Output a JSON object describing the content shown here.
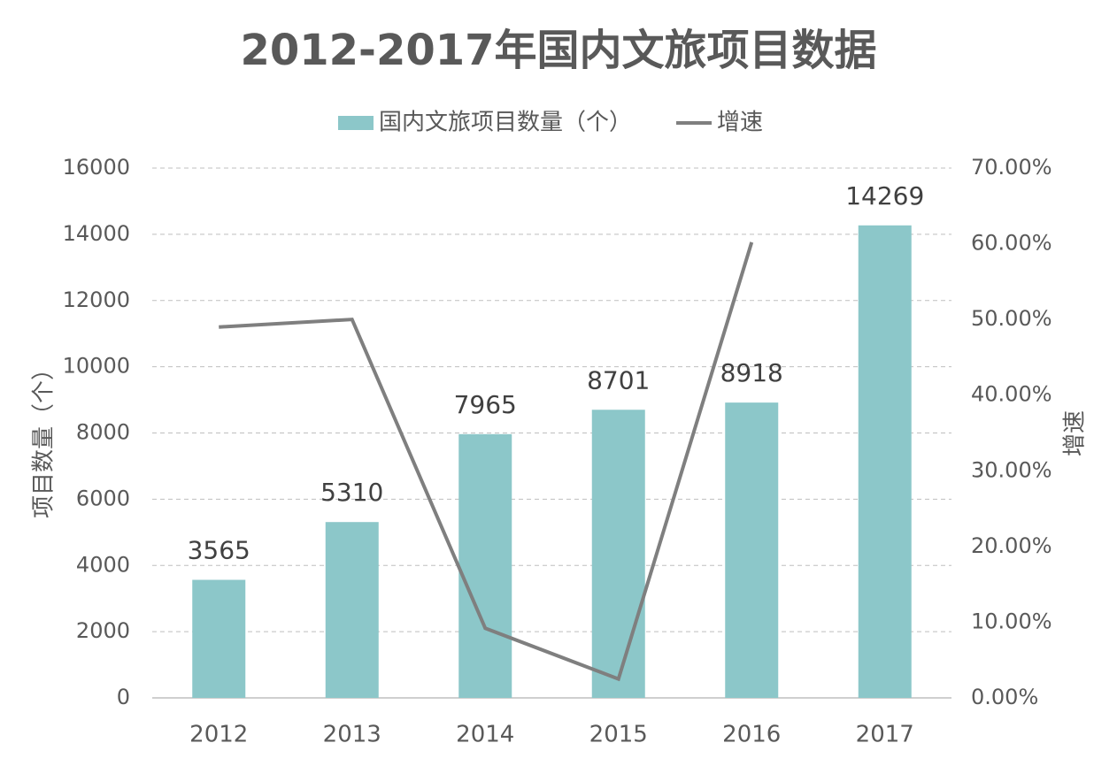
{
  "chart_data": {
    "type": "bar_line",
    "title": "2012-2017年国内文旅项目数据",
    "categories": [
      "2012",
      "2013",
      "2014",
      "2015",
      "2016",
      "2017"
    ],
    "series": [
      {
        "name": "国内文旅项目数量（个）",
        "type": "bar",
        "color": "#8cc7c9",
        "values": [
          3565,
          5310,
          7965,
          8701,
          8918,
          14269
        ]
      },
      {
        "name": "增速",
        "type": "line",
        "axis": "y2",
        "color": "#7f7f7f",
        "values": [
          49,
          50,
          9.2,
          2.5,
          60.2,
          null
        ]
      }
    ],
    "ylabel": "项目数量（个）",
    "y2label": "增速",
    "ylim": [
      0,
      16000
    ],
    "yticks": [
      0,
      2000,
      4000,
      6000,
      8000,
      10000,
      12000,
      14000,
      16000
    ],
    "y2lim": [
      0,
      70
    ],
    "y2ticks": [
      {
        "value": 0,
        "label": "0.00%"
      },
      {
        "value": 10,
        "label": "10.00%"
      },
      {
        "value": 20,
        "label": "20.00%"
      },
      {
        "value": 30,
        "label": "30.00%"
      },
      {
        "value": 40,
        "label": "40.00%"
      },
      {
        "value": 50,
        "label": "50.00%"
      },
      {
        "value": 60,
        "label": "60.00%"
      },
      {
        "value": 70,
        "label": "70.00%"
      }
    ],
    "grid": true,
    "legend": "top"
  }
}
